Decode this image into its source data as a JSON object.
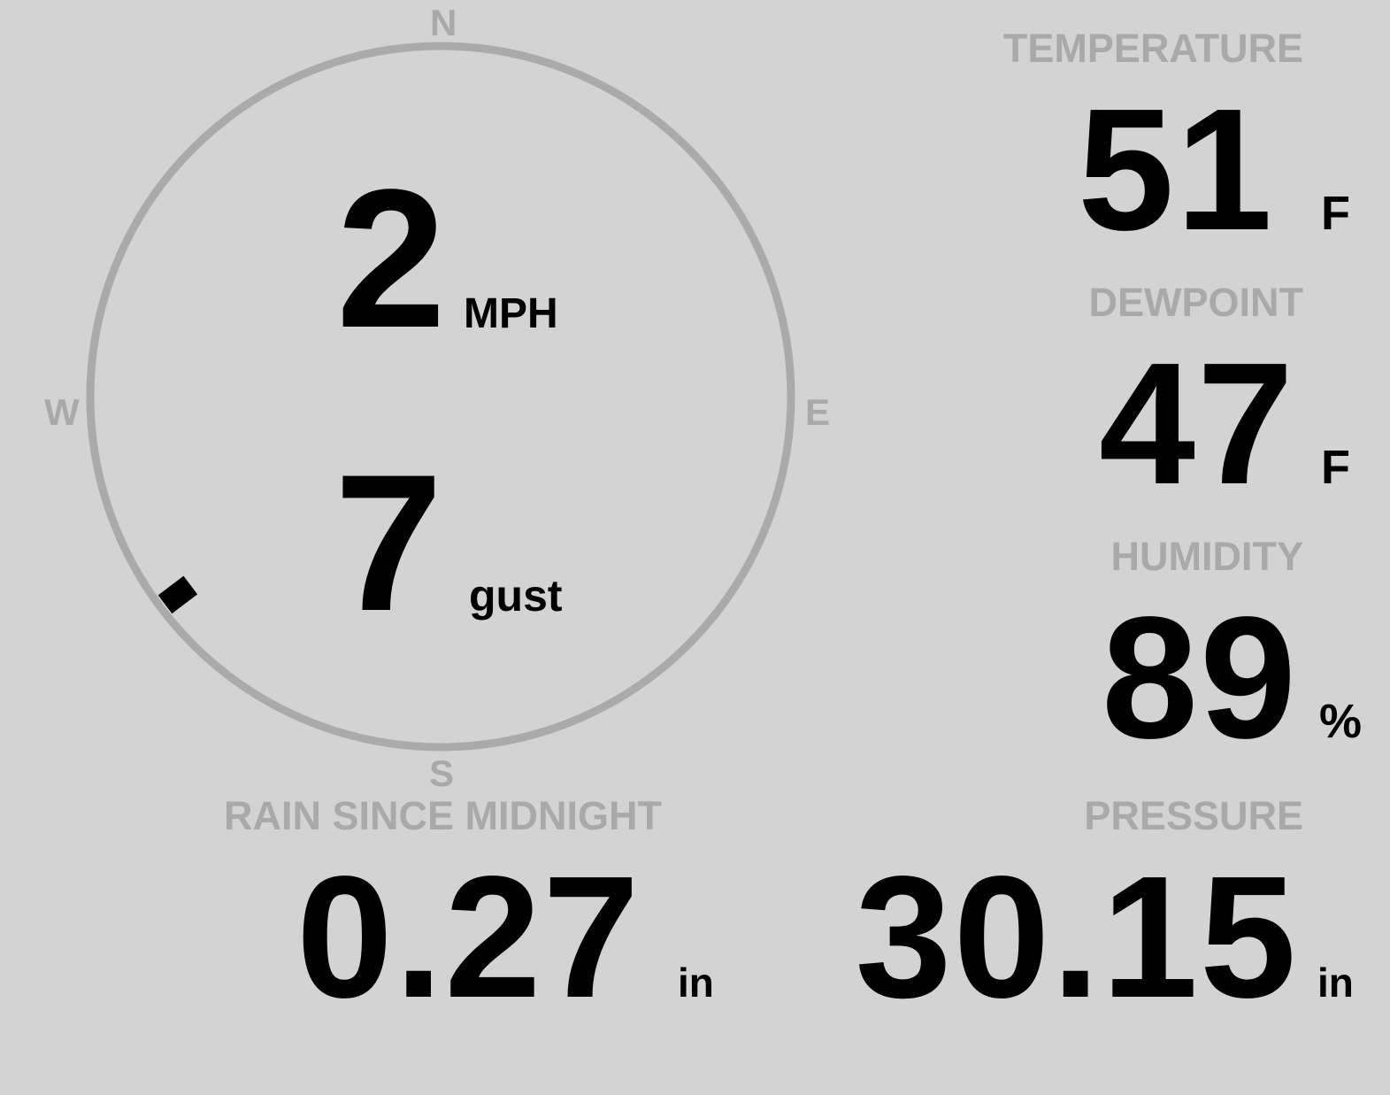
{
  "wind": {
    "speed": "2",
    "speed_unit": "MPH",
    "gust": "7",
    "gust_label": "gust",
    "direction_deg": 233,
    "compass": {
      "n": "N",
      "e": "E",
      "s": "S",
      "w": "W"
    }
  },
  "temperature": {
    "label": "TEMPERATURE",
    "value": "51",
    "unit": "F"
  },
  "dewpoint": {
    "label": "DEWPOINT",
    "value": "47",
    "unit": "F"
  },
  "humidity": {
    "label": "HUMIDITY",
    "value": "89",
    "unit": "%"
  },
  "pressure": {
    "label": "PRESSURE",
    "value": "30.15",
    "unit": "in"
  },
  "rain": {
    "label": "RAIN SINCE MIDNIGHT",
    "value": "0.27",
    "unit": "in"
  },
  "colors": {
    "background": "#d3d3d3",
    "label": "#a9a9a9",
    "ring": "#aaaaaa",
    "value": "#000000"
  }
}
